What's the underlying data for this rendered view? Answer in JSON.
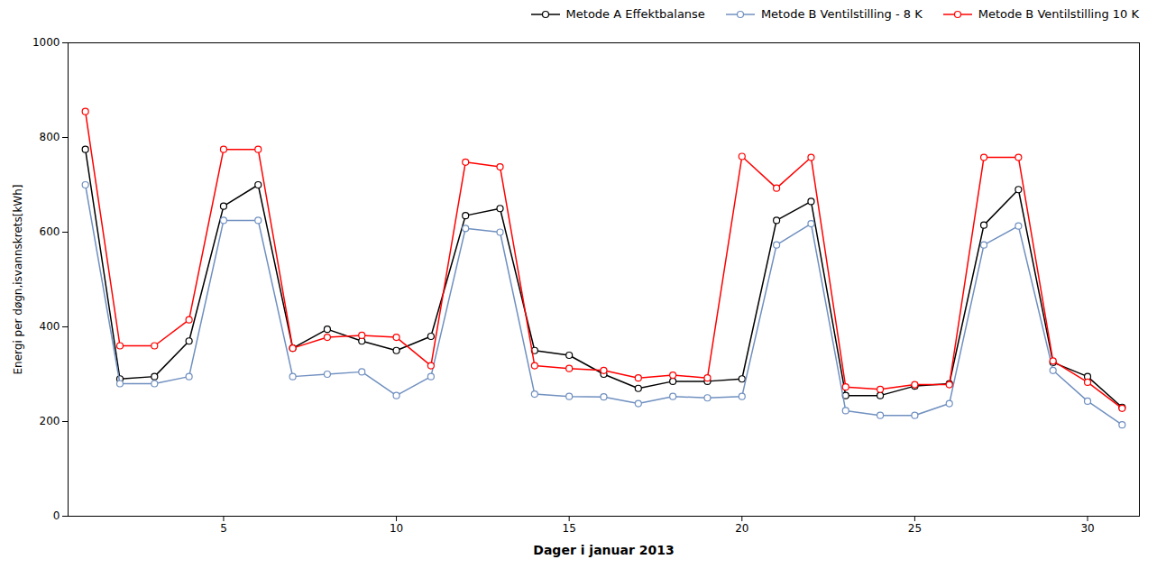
{
  "chart_data": {
    "type": "line",
    "xlabel": "Dager i januar 2013",
    "ylabel": "Energi per døgn,isvannskrets[kWh]",
    "x": [
      1,
      2,
      3,
      4,
      5,
      6,
      7,
      8,
      9,
      10,
      11,
      12,
      13,
      14,
      15,
      16,
      17,
      18,
      19,
      20,
      21,
      22,
      23,
      24,
      25,
      26,
      27,
      28,
      29,
      30,
      31
    ],
    "series": [
      {
        "name": "Metode A Effektbalanse",
        "color": "#000000",
        "values": [
          775,
          290,
          295,
          370,
          655,
          700,
          355,
          395,
          370,
          350,
          380,
          635,
          650,
          350,
          340,
          300,
          270,
          285,
          285,
          290,
          625,
          665,
          255,
          255,
          275,
          280,
          615,
          690,
          325,
          295,
          230
        ]
      },
      {
        "name": "Metode B Ventilstilling - 8 K",
        "color": "#7090c0",
        "values": [
          700,
          280,
          280,
          295,
          625,
          625,
          295,
          300,
          305,
          255,
          295,
          608,
          600,
          258,
          253,
          252,
          238,
          253,
          250,
          253,
          573,
          618,
          223,
          213,
          213,
          238,
          573,
          613,
          308,
          243,
          193
        ]
      },
      {
        "name": "Metode B Ventilstilling 10 K",
        "color": "#ff0000",
        "values": [
          855,
          360,
          360,
          415,
          775,
          775,
          355,
          378,
          382,
          378,
          318,
          748,
          738,
          318,
          312,
          308,
          292,
          298,
          292,
          760,
          693,
          758,
          273,
          268,
          278,
          278,
          758,
          758,
          328,
          283,
          228
        ]
      }
    ],
    "xlim": [
      0.5,
      31.5
    ],
    "xticks": [
      5,
      10,
      15,
      20,
      25,
      30
    ],
    "ylim": [
      0,
      1000
    ],
    "yticks": [
      0,
      200,
      400,
      600,
      800,
      1000
    ],
    "marker": "circle",
    "legend": "upper right",
    "grid": false
  }
}
